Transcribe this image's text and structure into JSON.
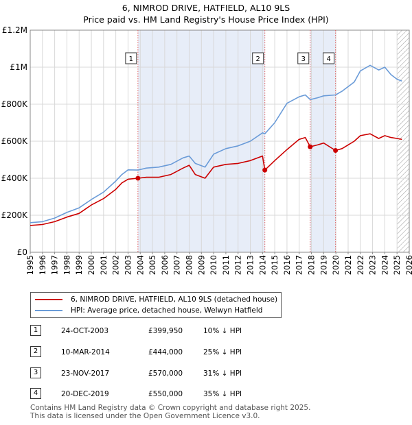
{
  "header": {
    "title": "6, NIMROD DRIVE, HATFIELD, AL10 9LS",
    "subtitle": "Price paid vs. HM Land Registry's House Price Index (HPI)"
  },
  "chart_data": {
    "type": "line",
    "title": "6, NIMROD DRIVE, HATFIELD, AL10 9LS",
    "subtitle": "Price paid vs. HM Land Registry's House Price Index (HPI)",
    "xlabel": "",
    "ylabel": "",
    "xlim": [
      1995,
      2026
    ],
    "ylim": [
      0,
      1200000
    ],
    "y_ticks": [
      0,
      200000,
      400000,
      600000,
      800000,
      1000000,
      1200000
    ],
    "y_tick_labels": [
      "£0",
      "£200K",
      "£400K",
      "£600K",
      "£800K",
      "£1M",
      "£1.2M"
    ],
    "x_ticks": [
      1995,
      1996,
      1997,
      1998,
      1999,
      2000,
      2001,
      2002,
      2003,
      2004,
      2005,
      2006,
      2007,
      2008,
      2009,
      2010,
      2011,
      2012,
      2013,
      2014,
      2015,
      2016,
      2017,
      2018,
      2019,
      2020,
      2021,
      2022,
      2023,
      2024,
      2025,
      2026
    ],
    "x_tick_labels": [
      "1995",
      "1996",
      "1997",
      "1998",
      "1999",
      "2000",
      "2001",
      "2002",
      "2003",
      "2004",
      "2005",
      "2006",
      "2007",
      "2008",
      "2009",
      "2010",
      "2011",
      "2012",
      "2013",
      "2014",
      "2015",
      "2016",
      "2017",
      "2018",
      "2019",
      "2020",
      "2021",
      "2022",
      "2023",
      "2024",
      "2025",
      "2026"
    ],
    "grid": true,
    "shaded_periods": [
      [
        2003.81,
        2014.19
      ],
      [
        2017.9,
        2019.97
      ]
    ],
    "hatched_from": 2025.0,
    "series": [
      {
        "name": "6, NIMROD DRIVE, HATFIELD, AL10 9LS (detached house)",
        "color": "#cc0000",
        "x": [
          1995.0,
          1996.0,
          1997.0,
          1998.0,
          1999.0,
          2000.0,
          2001.0,
          2002.0,
          2002.5,
          2003.0,
          2003.81,
          2004.5,
          2005.5,
          2006.5,
          2007.5,
          2008.0,
          2008.5,
          2009.3,
          2010.0,
          2011.0,
          2012.0,
          2013.0,
          2014.0,
          2014.19,
          2015.0,
          2016.0,
          2017.0,
          2017.5,
          2017.9,
          2018.5,
          2019.0,
          2019.97,
          2020.5,
          2021.5,
          2022.0,
          2022.8,
          2023.5,
          2024.0,
          2024.5,
          2025.0,
          2025.4
        ],
        "values": [
          145000,
          150000,
          165000,
          190000,
          210000,
          255000,
          290000,
          340000,
          375000,
          395000,
          399950,
          405000,
          405000,
          420000,
          455000,
          470000,
          420000,
          400000,
          460000,
          475000,
          480000,
          495000,
          520000,
          444000,
          495000,
          555000,
          610000,
          620000,
          570000,
          580000,
          590000,
          550000,
          560000,
          600000,
          630000,
          640000,
          615000,
          630000,
          620000,
          615000,
          610000
        ]
      },
      {
        "name": "HPI: Average price, detached house, Welwyn Hatfield",
        "color": "#6a9bd8",
        "x": [
          1995.0,
          1996.0,
          1997.0,
          1998.0,
          1999.0,
          2000.0,
          2001.0,
          2002.0,
          2002.5,
          2003.0,
          2003.81,
          2004.5,
          2005.5,
          2006.5,
          2007.5,
          2008.0,
          2008.5,
          2009.3,
          2010.0,
          2011.0,
          2012.0,
          2013.0,
          2014.0,
          2014.19,
          2015.0,
          2016.0,
          2017.0,
          2017.5,
          2017.9,
          2018.5,
          2019.0,
          2019.97,
          2020.5,
          2021.5,
          2022.0,
          2022.8,
          2023.5,
          2024.0,
          2024.5,
          2025.0,
          2025.4
        ],
        "values": [
          160000,
          165000,
          185000,
          215000,
          240000,
          285000,
          325000,
          385000,
          420000,
          445000,
          444000,
          455000,
          460000,
          475000,
          510000,
          520000,
          480000,
          460000,
          530000,
          560000,
          575000,
          600000,
          645000,
          640000,
          700000,
          805000,
          840000,
          850000,
          825000,
          835000,
          845000,
          850000,
          870000,
          920000,
          980000,
          1010000,
          985000,
          1000000,
          960000,
          935000,
          925000
        ]
      }
    ],
    "sales": [
      {
        "id": "1",
        "x": 2003.81,
        "value": 399950
      },
      {
        "id": "2",
        "x": 2014.19,
        "value": 444000
      },
      {
        "id": "3",
        "x": 2017.9,
        "value": 570000
      },
      {
        "id": "4",
        "x": 2019.97,
        "value": 550000
      }
    ]
  },
  "legend": {
    "property_label": "6, NIMROD DRIVE, HATFIELD, AL10 9LS (detached house)",
    "hpi_label": "HPI: Average price, detached house, Welwyn Hatfield"
  },
  "sales_table": [
    {
      "id": "1",
      "date": "24-OCT-2003",
      "price": "£399,950",
      "hpi": "10% ↓ HPI"
    },
    {
      "id": "2",
      "date": "10-MAR-2014",
      "price": "£444,000",
      "hpi": "25% ↓ HPI"
    },
    {
      "id": "3",
      "date": "23-NOV-2017",
      "price": "£570,000",
      "hpi": "31% ↓ HPI"
    },
    {
      "id": "4",
      "date": "20-DEC-2019",
      "price": "£550,000",
      "hpi": "35% ↓ HPI"
    }
  ],
  "footer": {
    "line1": "Contains HM Land Registry data © Crown copyright and database right 2025.",
    "line2": "This data is licensed under the Open Government Licence v3.0."
  },
  "colors": {
    "property": "#cc0000",
    "hpi": "#6a9bd8",
    "shade": "#dde6f5",
    "marker_line": "#e06060"
  }
}
